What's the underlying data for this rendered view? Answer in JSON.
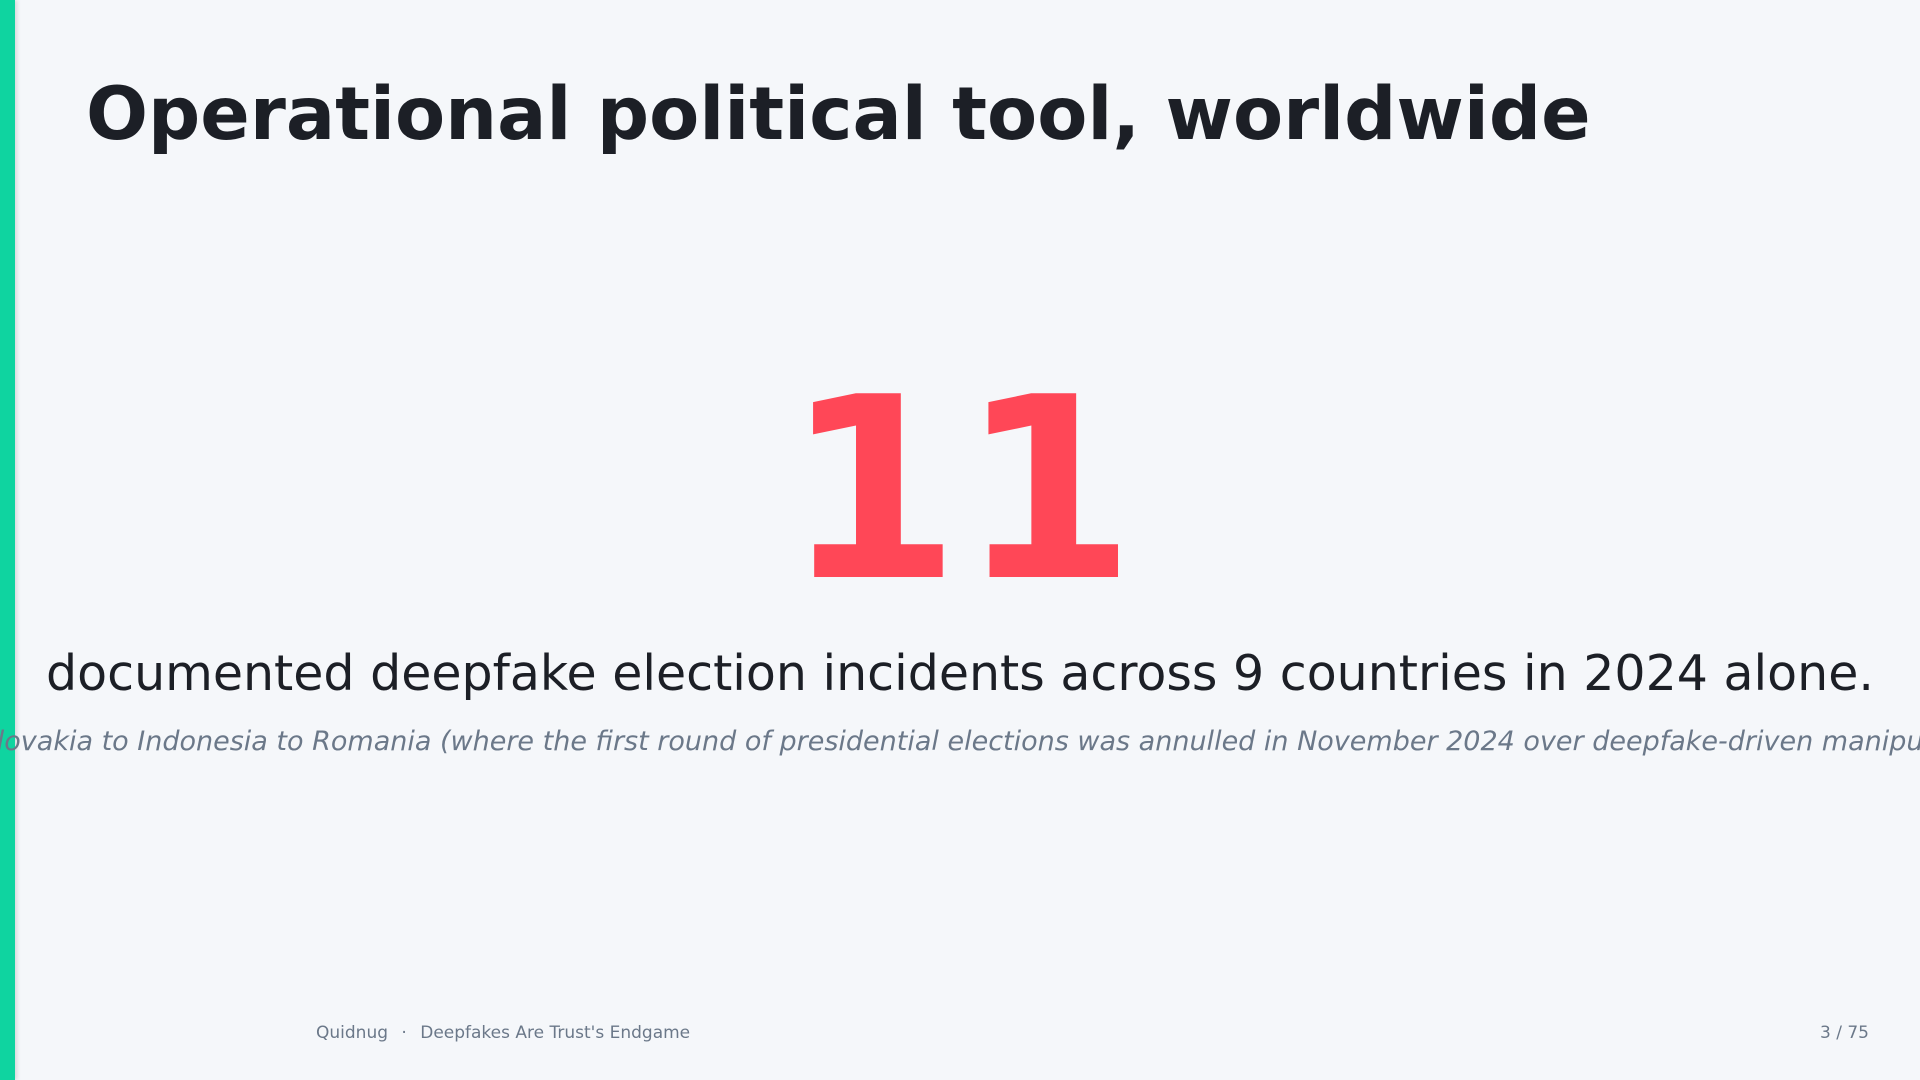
{
  "slide": {
    "title": "Operational political tool, worldwide",
    "stat": 11,
    "statement": "documented deepfake election incidents across 9 countries in 2024 alone.",
    "detail": "From Slovakia to Indonesia to Romania (where the first round of presidential elections was annulled in November 2024 over deepfake-driven manipulation)."
  },
  "footer": {
    "brand": "Quidnug",
    "separator": "·",
    "deck": "Deepfakes Are Trust's Endgame",
    "page": "3 / 75"
  }
}
